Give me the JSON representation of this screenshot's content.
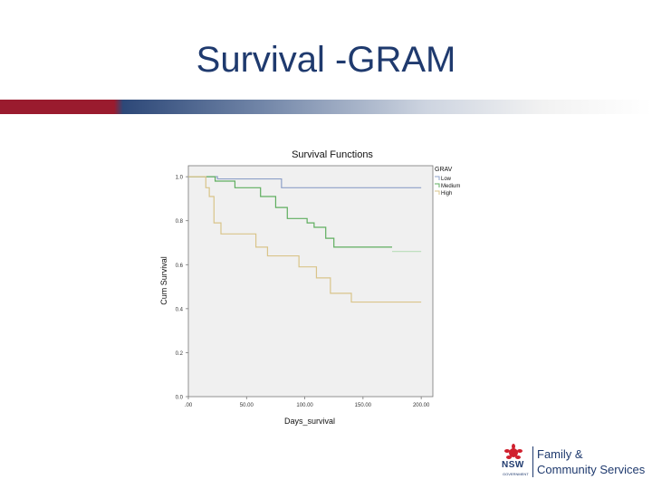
{
  "slide": {
    "title": "Survival -GRAM"
  },
  "colors": {
    "band_red": "#9a1b2e",
    "band_navy": "#2d4878",
    "plot_background": "#f0f0f0",
    "logo_red": "#d0202e",
    "logo_navy": "#1f3a6e"
  },
  "chart_data": {
    "type": "line",
    "step": true,
    "title": "Survival Functions",
    "xlabel": "Days_survival",
    "ylabel": "Cum Survival",
    "xlim": [
      0,
      210
    ],
    "ylim": [
      0,
      1.05
    ],
    "x_ticks": [
      0,
      50,
      100,
      150,
      200
    ],
    "x_tick_labels": [
      ".00",
      "50.00",
      "100.00",
      "150.00",
      "200.00"
    ],
    "y_ticks": [
      0,
      0.2,
      0.4,
      0.6,
      0.8,
      1.0
    ],
    "y_tick_labels": [
      "0.0",
      "0.2",
      "0.4",
      "0.6",
      "0.8",
      "1.0"
    ],
    "grid": false,
    "legend_title": "GRAV",
    "legend_position": "top-right",
    "series": [
      {
        "name": "Low",
        "color": "#8ea0c8",
        "points": [
          [
            0,
            1.0
          ],
          [
            25,
            1.0
          ],
          [
            25,
            0.99
          ],
          [
            80,
            0.99
          ],
          [
            80,
            0.95
          ],
          [
            200,
            0.95
          ]
        ]
      },
      {
        "name": "Medium",
        "color": "#5fae5f",
        "points": [
          [
            0,
            1.0
          ],
          [
            23,
            1.0
          ],
          [
            23,
            0.98
          ],
          [
            40,
            0.98
          ],
          [
            40,
            0.95
          ],
          [
            62,
            0.95
          ],
          [
            62,
            0.91
          ],
          [
            75,
            0.91
          ],
          [
            75,
            0.86
          ],
          [
            85,
            0.86
          ],
          [
            85,
            0.81
          ],
          [
            102,
            0.81
          ],
          [
            102,
            0.79
          ],
          [
            108,
            0.79
          ],
          [
            108,
            0.77
          ],
          [
            118,
            0.77
          ],
          [
            118,
            0.72
          ],
          [
            125,
            0.72
          ],
          [
            125,
            0.68
          ],
          [
            175,
            0.68
          ]
        ]
      },
      {
        "name": "High",
        "color": "#d9c48a",
        "points": [
          [
            0,
            1.0
          ],
          [
            15,
            1.0
          ],
          [
            15,
            0.95
          ],
          [
            18,
            0.95
          ],
          [
            18,
            0.91
          ],
          [
            22,
            0.91
          ],
          [
            22,
            0.79
          ],
          [
            28,
            0.79
          ],
          [
            28,
            0.74
          ],
          [
            58,
            0.74
          ],
          [
            58,
            0.68
          ],
          [
            68,
            0.68
          ],
          [
            68,
            0.64
          ],
          [
            95,
            0.64
          ],
          [
            95,
            0.59
          ],
          [
            110,
            0.59
          ],
          [
            110,
            0.54
          ],
          [
            122,
            0.54
          ],
          [
            122,
            0.47
          ],
          [
            140,
            0.47
          ],
          [
            140,
            0.43
          ],
          [
            200,
            0.43
          ]
        ]
      }
    ],
    "extra_segments": [
      {
        "series": "Medium",
        "color": "#b8ddb8",
        "points": [
          [
            175,
            0.66
          ],
          [
            200,
            0.66
          ]
        ]
      }
    ]
  },
  "logo": {
    "wordmark": "NSW",
    "sub": "GOVERNMENT",
    "line1": "Family &",
    "line2": "Community Services"
  }
}
